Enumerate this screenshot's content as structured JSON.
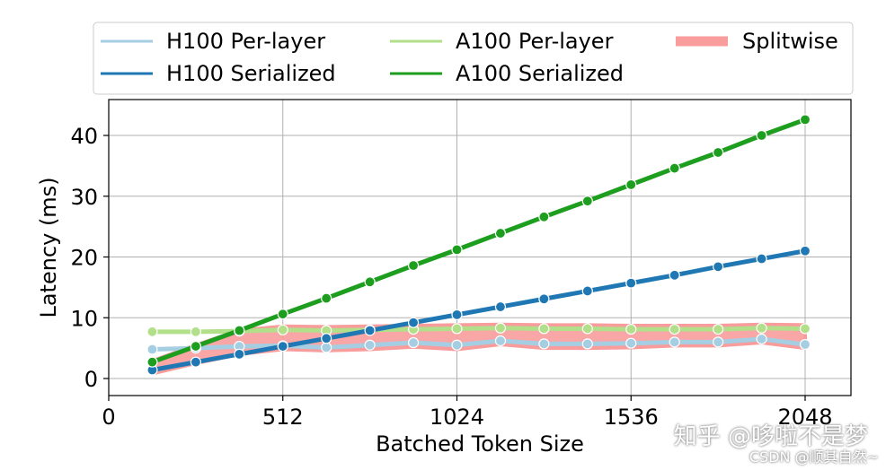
{
  "chart_data": {
    "type": "line",
    "xlabel": "Batched Token Size",
    "ylabel": "Latency (ms)",
    "xlim": [
      0,
      2100
    ],
    "ylim": [
      -3,
      46
    ],
    "xticks": [
      0,
      512,
      1024,
      1536,
      2048
    ],
    "yticks": [
      0,
      10,
      20,
      30,
      40
    ],
    "grid": true,
    "legend_position": "top",
    "legend_columns": 3,
    "x": [
      128,
      256,
      384,
      512,
      640,
      768,
      896,
      1024,
      1152,
      1280,
      1408,
      1536,
      1664,
      1792,
      1920,
      2048
    ],
    "series": [
      {
        "name": "H100 Per-layer",
        "color": "#a6cee3",
        "style": "marker",
        "values": [
          4.8,
          5.0,
          5.3,
          5.4,
          5.1,
          5.5,
          5.9,
          5.5,
          6.2,
          5.7,
          5.7,
          5.8,
          6.0,
          6.0,
          6.5,
          5.6
        ]
      },
      {
        "name": "H100 Serialized",
        "color": "#1f78b4",
        "style": "marker",
        "values": [
          1.4,
          2.7,
          4.0,
          5.3,
          6.6,
          7.9,
          9.2,
          10.5,
          11.8,
          13.1,
          14.4,
          15.7,
          17.0,
          18.4,
          19.7,
          21.0
        ]
      },
      {
        "name": "A100 Per-layer",
        "color": "#b2df8a",
        "style": "marker",
        "values": [
          7.7,
          7.7,
          7.8,
          8.0,
          7.9,
          8.0,
          8.1,
          8.2,
          8.3,
          8.2,
          8.2,
          8.1,
          8.1,
          8.1,
          8.3,
          8.2
        ]
      },
      {
        "name": "A100 Serialized",
        "color": "#1e9e1e",
        "style": "marker",
        "values": [
          2.7,
          5.3,
          7.9,
          10.6,
          13.2,
          15.9,
          18.6,
          21.2,
          23.9,
          26.6,
          29.2,
          31.9,
          34.6,
          37.2,
          40.0,
          42.6
        ]
      },
      {
        "name": "Splitwise",
        "color": "#f89c9c",
        "style": "band",
        "values_low": [
          0.8,
          2.5,
          4.0,
          4.8,
          4.6,
          4.8,
          5.2,
          4.8,
          5.6,
          5.0,
          5.0,
          5.1,
          5.4,
          5.4,
          5.9,
          5.0
        ],
        "values_high": [
          2.9,
          5.5,
          7.9,
          8.6,
          8.5,
          8.6,
          8.7,
          8.8,
          8.9,
          8.8,
          8.8,
          8.7,
          8.7,
          8.7,
          8.9,
          8.8
        ]
      }
    ]
  },
  "watermark": {
    "line1": "知乎 @哆啦不是梦",
    "line2": "CSDN @顺其自然~"
  }
}
